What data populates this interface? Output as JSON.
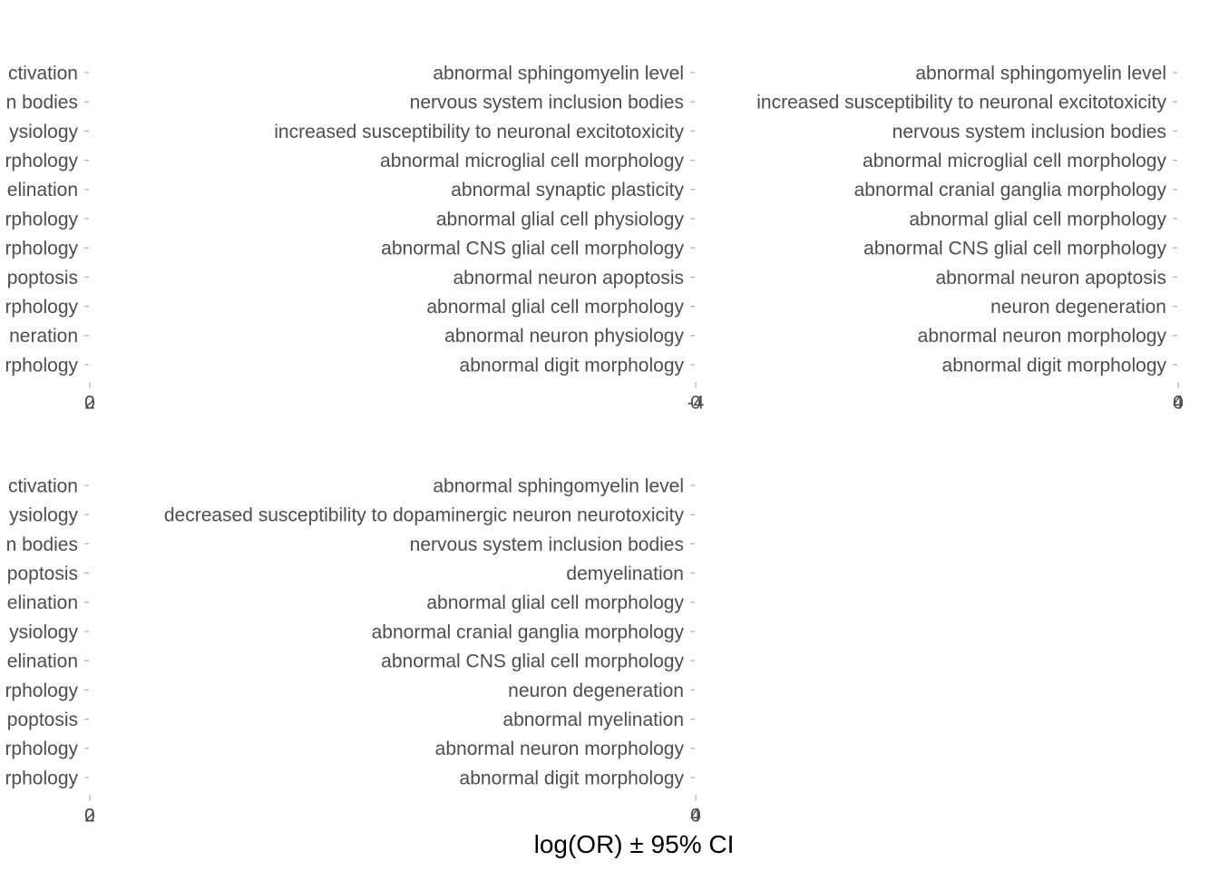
{
  "chart_data": {
    "type": "scatter",
    "xlabel": "log(OR) ± 95% CI",
    "panels": [
      {
        "row": 1,
        "col": 1,
        "categories": [
          "ctivation",
          "n bodies",
          "ysiology",
          "rphology",
          "elination",
          "rphology",
          "rphology",
          "poptosis",
          "rphology",
          "neration",
          "rphology"
        ],
        "x_tick_labels": [
          "2",
          "0"
        ]
      },
      {
        "row": 1,
        "col": 2,
        "categories": [
          "abnormal sphingomyelin level",
          "nervous system inclusion bodies",
          "increased susceptibility to neuronal excitotoxicity",
          "abnormal microglial cell morphology",
          "abnormal synaptic plasticity",
          "abnormal glial cell physiology",
          "abnormal CNS glial cell morphology",
          "abnormal neuron apoptosis",
          "abnormal glial cell morphology",
          "abnormal neuron physiology",
          "abnormal digit morphology"
        ],
        "x_tick_labels": [
          "-4",
          "0"
        ]
      },
      {
        "row": 1,
        "col": 3,
        "categories": [
          "abnormal sphingomyelin level",
          "increased susceptibility to neuronal excitotoxicity",
          "nervous system inclusion bodies",
          "abnormal microglial cell morphology",
          "abnormal cranial ganglia morphology",
          "abnormal glial cell morphology",
          "abnormal CNS glial cell morphology",
          "abnormal neuron apoptosis",
          "neuron degeneration",
          "abnormal neuron morphology",
          "abnormal digit morphology"
        ],
        "x_tick_labels": [
          "4",
          "0"
        ]
      },
      {
        "row": 2,
        "col": 1,
        "categories": [
          "ctivation",
          "ysiology",
          "n bodies",
          "poptosis",
          "elination",
          "ysiology",
          "elination",
          "rphology",
          "poptosis",
          "rphology",
          "rphology"
        ],
        "x_tick_labels": [
          "2",
          "0"
        ]
      },
      {
        "row": 2,
        "col": 2,
        "categories": [
          "abnormal sphingomyelin level",
          "decreased susceptibility to dopaminergic neuron neurotoxicity",
          "nervous system inclusion bodies",
          "demyelination",
          "abnormal glial cell morphology",
          "abnormal cranial ganglia morphology",
          "abnormal CNS glial cell morphology",
          "neuron degeneration",
          "abnormal myelination",
          "abnormal neuron morphology",
          "abnormal digit morphology"
        ],
        "x_tick_labels": [
          "4",
          "0"
        ]
      }
    ]
  }
}
